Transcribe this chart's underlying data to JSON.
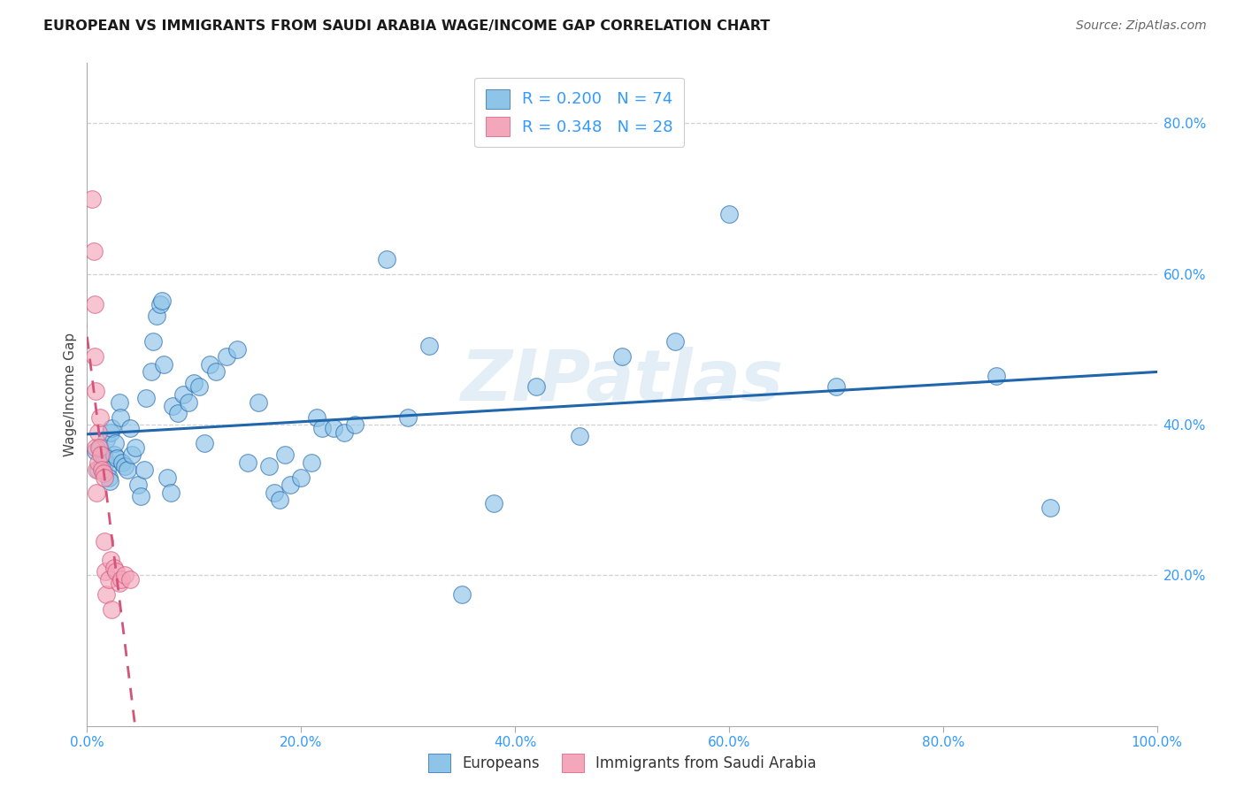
{
  "title": "EUROPEAN VS IMMIGRANTS FROM SAUDI ARABIA WAGE/INCOME GAP CORRELATION CHART",
  "source": "Source: ZipAtlas.com",
  "ylabel": "Wage/Income Gap",
  "legend_label1": "Europeans",
  "legend_label2": "Immigrants from Saudi Arabia",
  "r1": 0.2,
  "n1": 74,
  "r2": 0.348,
  "n2": 28,
  "blue_color": "#8ec4e8",
  "pink_color": "#f4a7bb",
  "blue_line_color": "#2166ac",
  "pink_line_color": "#d4547a",
  "background_color": "#ffffff",
  "grid_color": "#cccccc",
  "watermark": "ZIPatlas",
  "europeans_x": [
    0.8,
    1.0,
    1.2,
    1.4,
    1.5,
    1.6,
    1.7,
    1.8,
    1.9,
    2.0,
    2.1,
    2.2,
    2.3,
    2.5,
    2.6,
    2.8,
    3.0,
    3.1,
    3.3,
    3.5,
    3.8,
    4.0,
    4.2,
    4.5,
    4.8,
    5.0,
    5.3,
    5.5,
    6.0,
    6.2,
    6.5,
    6.8,
    7.0,
    7.2,
    7.5,
    7.8,
    8.0,
    8.5,
    9.0,
    9.5,
    10.0,
    10.5,
    11.0,
    11.5,
    12.0,
    13.0,
    14.0,
    15.0,
    16.0,
    17.0,
    17.5,
    18.0,
    18.5,
    19.0,
    20.0,
    21.0,
    21.5,
    22.0,
    23.0,
    24.0,
    25.0,
    28.0,
    30.0,
    32.0,
    35.0,
    38.0,
    42.0,
    46.0,
    50.0,
    55.0,
    60.0,
    70.0,
    85.0,
    90.0
  ],
  "europeans_y": [
    36.5,
    34.0,
    37.0,
    34.5,
    36.0,
    35.5,
    35.0,
    38.0,
    34.0,
    33.0,
    32.5,
    39.0,
    39.5,
    36.0,
    37.5,
    35.5,
    43.0,
    41.0,
    35.0,
    34.5,
    34.0,
    39.5,
    36.0,
    37.0,
    32.0,
    30.5,
    34.0,
    43.5,
    47.0,
    51.0,
    54.5,
    56.0,
    56.5,
    48.0,
    33.0,
    31.0,
    42.5,
    41.5,
    44.0,
    43.0,
    45.5,
    45.0,
    37.5,
    48.0,
    47.0,
    49.0,
    50.0,
    35.0,
    43.0,
    34.5,
    31.0,
    30.0,
    36.0,
    32.0,
    33.0,
    35.0,
    41.0,
    39.5,
    39.5,
    39.0,
    40.0,
    62.0,
    41.0,
    50.5,
    17.5,
    29.5,
    45.0,
    38.5,
    49.0,
    51.0,
    68.0,
    45.0,
    46.5,
    29.0
  ],
  "saudi_x": [
    0.5,
    0.6,
    0.7,
    0.7,
    0.8,
    0.8,
    0.9,
    0.9,
    1.0,
    1.0,
    1.1,
    1.2,
    1.3,
    1.4,
    1.5,
    1.6,
    1.6,
    1.7,
    1.8,
    2.0,
    2.2,
    2.3,
    2.5,
    2.7,
    3.0,
    3.2,
    3.5,
    4.0
  ],
  "saudi_y": [
    70.0,
    63.0,
    56.0,
    49.0,
    44.5,
    37.0,
    34.0,
    31.0,
    35.0,
    39.0,
    37.0,
    41.0,
    36.0,
    34.0,
    33.5,
    33.0,
    24.5,
    20.5,
    17.5,
    19.5,
    22.0,
    15.5,
    21.0,
    20.5,
    19.0,
    19.5,
    20.0,
    19.5
  ],
  "xlim": [
    0,
    100
  ],
  "ylim": [
    0,
    88
  ],
  "yticks": [
    20,
    40,
    60,
    80
  ],
  "xticks": [
    0,
    20,
    40,
    60,
    80,
    100
  ]
}
